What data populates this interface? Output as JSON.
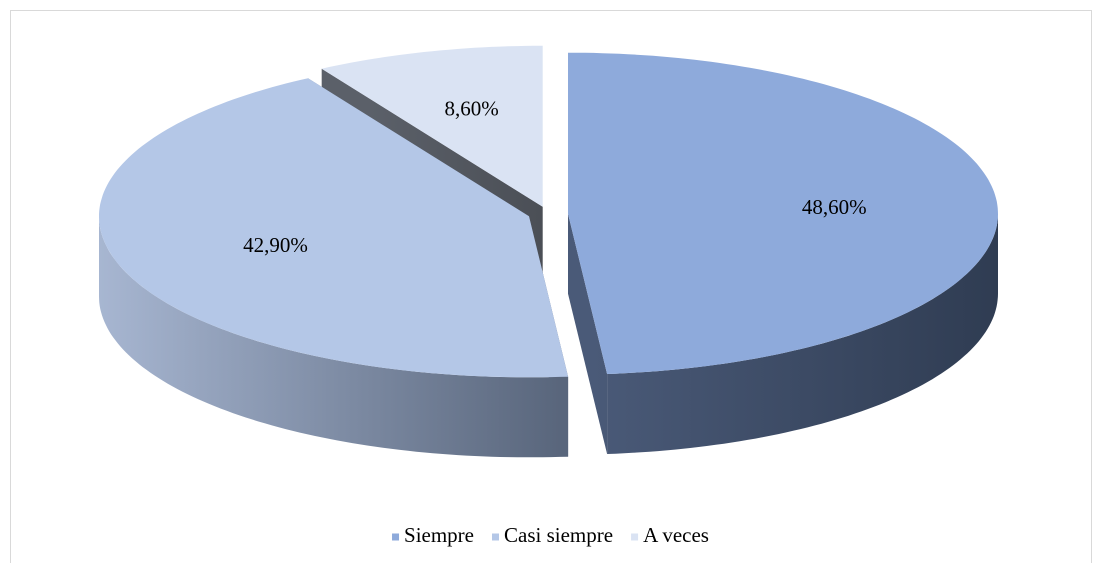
{
  "chart_data": {
    "type": "pie3d",
    "categories": [
      "Siempre",
      "Casi siempre",
      "A veces"
    ],
    "values": [
      48.6,
      42.9,
      8.6
    ],
    "value_labels": [
      "48,60%",
      "42,90%",
      "8,60%"
    ],
    "colors": [
      "#8eaadb",
      "#b4c7e7",
      "#dae3f3"
    ],
    "legend": "bottom"
  }
}
